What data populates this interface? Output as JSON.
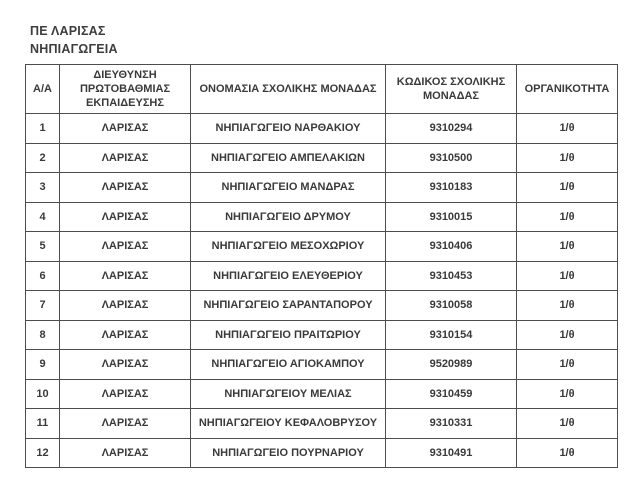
{
  "page": {
    "title_line1": "ΠΕ ΛΑΡΙΣΑΣ",
    "title_line2": "ΝΗΠΙΑΓΩΓΕΙΑ"
  },
  "table": {
    "columns": [
      "Α/Α",
      "ΔΙΕΥΘΥΝΣΗ ΠΡΩΤΟΒΑΘΜΙΑΣ ΕΚΠΑΙΔΕΥΣΗΣ",
      "ΟΝΟΜΑΣΙΑ ΣΧΟΛΙΚΗΣ ΜΟΝΑΔΑΣ",
      "ΚΩΔΙΚΟΣ ΣΧΟΛΙΚΗΣ ΜΟΝΑΔΑΣ",
      "ΟΡΓΑΝΙΚΟΤΗΤΑ"
    ],
    "rows": [
      {
        "aa": "1",
        "directorate": "ΛΑΡΙΣΑΣ",
        "school_name": "ΝΗΠΙΑΓΩΓΕΙΟ ΝΑΡΘΑΚΙΟΥ",
        "school_code": "9310294",
        "organicity": "1/θ"
      },
      {
        "aa": "2",
        "directorate": "ΛΑΡΙΣΑΣ",
        "school_name": "ΝΗΠΙΑΓΩΓΕΙΟ ΑΜΠΕΛΑΚΙΩΝ",
        "school_code": "9310500",
        "organicity": "1/θ"
      },
      {
        "aa": "3",
        "directorate": "ΛΑΡΙΣΑΣ",
        "school_name": "ΝΗΠΙΑΓΩΓΕΙΟ ΜΑΝΔΡΑΣ",
        "school_code": "9310183",
        "organicity": "1/θ"
      },
      {
        "aa": "4",
        "directorate": "ΛΑΡΙΣΑΣ",
        "school_name": "ΝΗΠΙΑΓΩΓΕΙΟ ΔΡΥΜΟΥ",
        "school_code": "9310015",
        "organicity": "1/θ"
      },
      {
        "aa": "5",
        "directorate": "ΛΑΡΙΣΑΣ",
        "school_name": "ΝΗΠΙΑΓΩΓΕΙΟ ΜΕΣΟΧΩΡΙΟΥ",
        "school_code": "9310406",
        "organicity": "1/θ"
      },
      {
        "aa": "6",
        "directorate": "ΛΑΡΙΣΑΣ",
        "school_name": "ΝΗΠΙΑΓΩΓΕΙΟ ΕΛΕΥΘΕΡΙΟΥ",
        "school_code": "9310453",
        "organicity": "1/θ"
      },
      {
        "aa": "7",
        "directorate": "ΛΑΡΙΣΑΣ",
        "school_name": "ΝΗΠΙΑΓΩΓΕΙΟ ΣΑΡΑΝΤΑΠΟΡΟΥ",
        "school_code": "9310058",
        "organicity": "1/θ"
      },
      {
        "aa": "8",
        "directorate": "ΛΑΡΙΣΑΣ",
        "school_name": "ΝΗΠΙΑΓΩΓΕΙΟ ΠΡΑΙΤΩΡΙΟΥ",
        "school_code": "9310154",
        "organicity": "1/θ"
      },
      {
        "aa": "9",
        "directorate": "ΛΑΡΙΣΑΣ",
        "school_name": "ΝΗΠΙΑΓΩΓΕΙΟ ΑΓΙΟΚΑΜΠΟΥ",
        "school_code": "9520989",
        "organicity": "1/θ"
      },
      {
        "aa": "10",
        "directorate": "ΛΑΡΙΣΑΣ",
        "school_name": "ΝΗΠΙΑΓΩΓΕΙΟΥ ΜΕΛΙΑΣ",
        "school_code": "9310459",
        "organicity": "1/θ"
      },
      {
        "aa": "11",
        "directorate": "ΛΑΡΙΣΑΣ",
        "school_name": "ΝΗΠΙΑΓΩΓΕΙΟΥ ΚΕΦΑΛΟΒΡΥΣΟΥ",
        "school_code": "9310331",
        "organicity": "1/θ"
      },
      {
        "aa": "12",
        "directorate": "ΛΑΡΙΣΑΣ",
        "school_name": "ΝΗΠΙΑΓΩΓΕΙΟ ΠΟΥΡΝΑΡΙΟΥ",
        "school_code": "9310491",
        "organicity": "1/θ"
      }
    ]
  },
  "colors": {
    "background": "#ffffff",
    "text": "#3a3a3a",
    "border": "#4d4d4d"
  }
}
